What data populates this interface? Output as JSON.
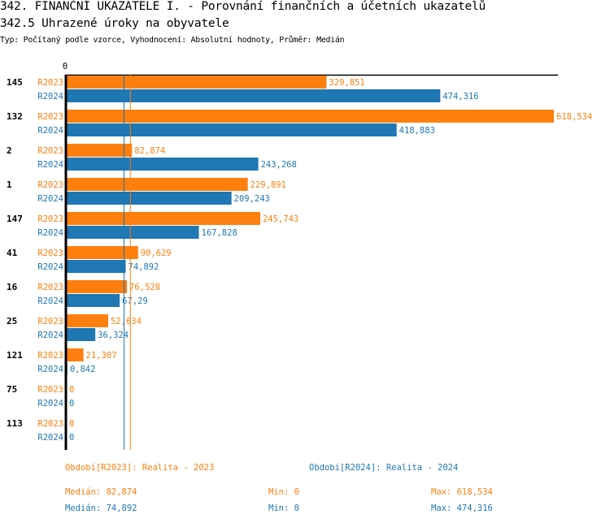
{
  "header": {
    "title": "342. FINANČNÍ UKAZATELE I. - Porovnání finančních a účetních ukazatelů",
    "subtitle": "342.5 Uhrazené úroky na obyvatele",
    "info": "Typ: Počítaný podle vzorce, Vyhodnocení: Absolutní hodnoty, Průměr: Medián"
  },
  "chart_data": {
    "type": "bar",
    "orientation": "horizontal",
    "title": "342.5 Uhrazené úroky na obyvatele",
    "axis_zero_label": "0",
    "xlim": [
      0,
      618.534
    ],
    "categories": [
      "145",
      "132",
      "2",
      "1",
      "147",
      "41",
      "16",
      "25",
      "121",
      "75",
      "113"
    ],
    "series": [
      {
        "name": "R2023",
        "color": "#ff7f0e",
        "values": [
          329.851,
          618.534,
          82.874,
          229.891,
          245.743,
          90.629,
          76.528,
          52.634,
          21.307,
          0,
          0
        ],
        "labels": [
          "329,851",
          "618,534",
          "82,874",
          "229,891",
          "245,743",
          "90,629",
          "76,528",
          "52,634",
          "21,307",
          "0",
          "0"
        ]
      },
      {
        "name": "R2024",
        "color": "#1f77b4",
        "values": [
          474.316,
          418.883,
          243.268,
          209.243,
          167.828,
          74.892,
          67.29,
          36.324,
          0.842,
          0,
          0
        ],
        "labels": [
          "474,316",
          "418,883",
          "243,268",
          "209,243",
          "167,828",
          "74,892",
          "67,29",
          "36,324",
          "0,842",
          "0",
          "0"
        ]
      }
    ],
    "median_lines": [
      {
        "series": "R2023",
        "value": 82.874,
        "color": "#ff7f0e"
      },
      {
        "series": "R2024",
        "value": 74.892,
        "color": "#1f77b4"
      }
    ]
  },
  "legend": {
    "r2023": "Období[R2023]: Realita - 2023",
    "r2024": "Období[R2024]: Realita - 2024"
  },
  "stats": {
    "r2023": {
      "median": "Medián: 82,874",
      "min": "Min: 0",
      "max": "Max: 618,534"
    },
    "r2024": {
      "median": "Medián: 74,892",
      "min": "Min: 0",
      "max": "Max: 474,316"
    }
  }
}
